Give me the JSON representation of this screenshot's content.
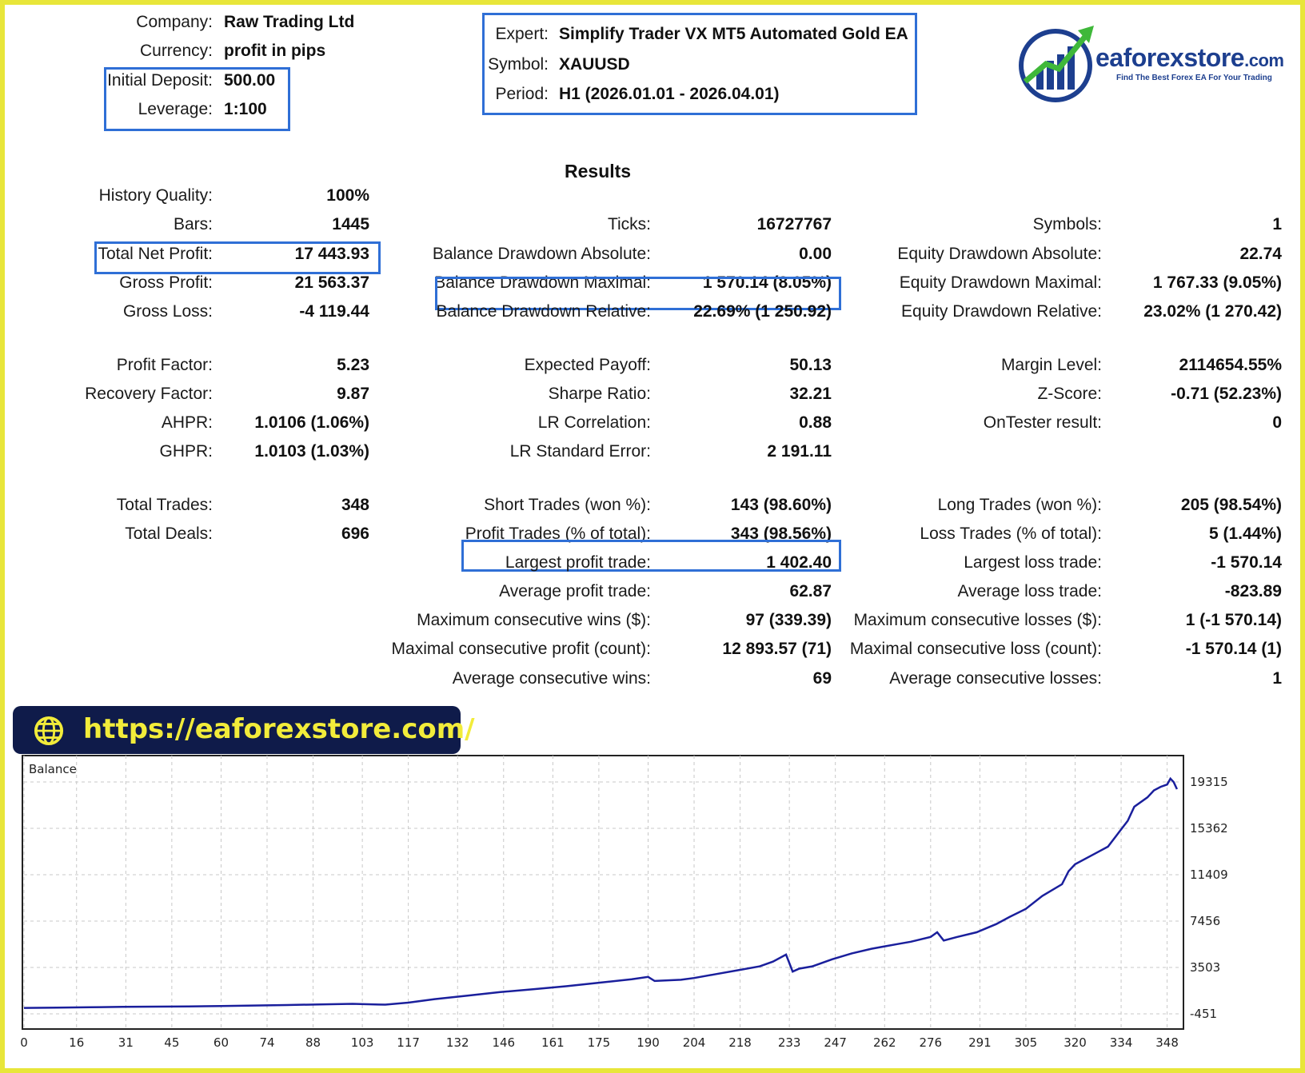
{
  "header": {
    "company_label": "Company:",
    "company": "Raw Trading Ltd",
    "currency_label": "Currency:",
    "currency": "profit in pips",
    "deposit_label": "Initial Deposit:",
    "deposit": "500.00",
    "leverage_label": "Leverage:",
    "leverage": "1:100",
    "expert_label": "Expert:",
    "expert": "Simplify Trader VX MT5 Automated Gold EA",
    "symbol_label": "Symbol:",
    "symbol": "XAUUSD",
    "period_label": "Period:",
    "period": "H1 (2026.01.01 - 2026.04.01)"
  },
  "logo": {
    "brand": "eaforexstore",
    "tld": ".com",
    "tagline": "Find The Best Forex EA For Your Trading"
  },
  "results_title": "Results",
  "col1": [
    {
      "label": "History Quality:",
      "value": "100%"
    },
    {
      "label": "Bars:",
      "value": "1445"
    },
    {
      "label": "Total Net Profit:",
      "value": "17 443.93"
    },
    {
      "label": "Gross Profit:",
      "value": "21 563.37"
    },
    {
      "label": "Gross Loss:",
      "value": "-4 119.44"
    },
    {
      "label": "Profit Factor:",
      "value": "5.23"
    },
    {
      "label": "Recovery Factor:",
      "value": "9.87"
    },
    {
      "label": "AHPR:",
      "value": "1.0106 (1.06%)"
    },
    {
      "label": "GHPR:",
      "value": "1.0103 (1.03%)"
    },
    {
      "label": "Total Trades:",
      "value": "348"
    },
    {
      "label": "Total Deals:",
      "value": "696"
    }
  ],
  "col2": [
    {
      "label": "Ticks:",
      "value": "16727767"
    },
    {
      "label": "Balance Drawdown Absolute:",
      "value": "0.00"
    },
    {
      "label": "Balance Drawdown Maximal:",
      "value": "1 570.14 (8.05%)"
    },
    {
      "label": "Balance Drawdown Relative:",
      "value": "22.69% (1 250.92)"
    },
    {
      "label": "Expected Payoff:",
      "value": "50.13"
    },
    {
      "label": "Sharpe Ratio:",
      "value": "32.21"
    },
    {
      "label": "LR Correlation:",
      "value": "0.88"
    },
    {
      "label": "LR Standard Error:",
      "value": "2 191.11"
    },
    {
      "label": "Short Trades (won %):",
      "value": "143 (98.60%)"
    },
    {
      "label": "Profit Trades (% of total):",
      "value": "343 (98.56%)"
    },
    {
      "label": "Largest profit trade:",
      "value": "1 402.40"
    },
    {
      "label": "Average profit trade:",
      "value": "62.87"
    },
    {
      "label": "Maximum consecutive wins ($):",
      "value": "97 (339.39)"
    },
    {
      "label": "Maximal consecutive profit (count):",
      "value": "12 893.57 (71)"
    },
    {
      "label": "Average consecutive wins:",
      "value": "69"
    }
  ],
  "col3": [
    {
      "label": "Symbols:",
      "value": "1"
    },
    {
      "label": "Equity Drawdown Absolute:",
      "value": "22.74"
    },
    {
      "label": "Equity Drawdown Maximal:",
      "value": "1 767.33 (9.05%)"
    },
    {
      "label": "Equity Drawdown Relative:",
      "value": "23.02% (1 270.42)"
    },
    {
      "label": "Margin Level:",
      "value": "2114654.55%"
    },
    {
      "label": "Z-Score:",
      "value": "-0.71 (52.23%)"
    },
    {
      "label": "OnTester result:",
      "value": "0"
    },
    {
      "label": "Long Trades (won %):",
      "value": "205 (98.54%)"
    },
    {
      "label": "Loss Trades (% of total):",
      "value": "5 (1.44%)"
    },
    {
      "label": "Largest loss trade:",
      "value": "-1 570.14"
    },
    {
      "label": "Average loss trade:",
      "value": "-823.89"
    },
    {
      "label": "Maximum consecutive losses ($):",
      "value": "1 (-1 570.14)"
    },
    {
      "label": "Maximal consecutive loss (count):",
      "value": "-1 570.14 (1)"
    },
    {
      "label": "Average consecutive losses:",
      "value": "1"
    }
  ],
  "banner": {
    "url": "https://eaforexstore.com/"
  },
  "colors": {
    "highlight_box": "#2f6fd6",
    "frame": "#e8e63a",
    "banner_bg": "#0f1b4a",
    "banner_text": "#f2ec3a",
    "balance_line": "#1a1f9c"
  },
  "chart_data": {
    "type": "line",
    "title": "Balance",
    "x_ticks": [
      0,
      16,
      31,
      45,
      60,
      74,
      88,
      103,
      117,
      132,
      146,
      161,
      175,
      190,
      204,
      218,
      233,
      247,
      262,
      276,
      291,
      305,
      320,
      334,
      348
    ],
    "y_ticks": [
      -451,
      3503,
      7456,
      11409,
      15362,
      19315
    ],
    "xlim": [
      0,
      352
    ],
    "ylim": [
      -451,
      19900
    ],
    "grid": true,
    "series": [
      {
        "x": [
          0,
          10,
          20,
          30,
          40,
          50,
          60,
          70,
          80,
          90,
          100,
          108,
          110,
          117,
          125,
          135,
          145,
          155,
          165,
          175,
          185,
          190,
          192,
          200,
          204,
          210,
          218,
          224,
          228,
          232,
          234,
          236,
          240,
          246,
          252,
          258,
          262,
          266,
          270,
          276,
          278,
          280,
          284,
          290,
          296,
          300,
          305,
          310,
          316,
          318,
          320,
          326,
          330,
          336,
          338,
          342,
          344,
          346,
          348,
          349,
          350,
          351
        ],
        "y": [
          50,
          80,
          110,
          150,
          160,
          180,
          210,
          260,
          300,
          350,
          400,
          340,
          330,
          500,
          800,
          1100,
          1400,
          1650,
          1900,
          2200,
          2500,
          2700,
          2350,
          2450,
          2600,
          2900,
          3300,
          3600,
          4000,
          4600,
          3150,
          3400,
          3600,
          4200,
          4700,
          5100,
          5300,
          5500,
          5700,
          6100,
          6500,
          5800,
          6100,
          6500,
          7200,
          7800,
          8500,
          9600,
          10600,
          11700,
          12300,
          13200,
          13800,
          16000,
          17200,
          18000,
          18600,
          18900,
          19100,
          19600,
          19300,
          18700
        ]
      }
    ]
  }
}
